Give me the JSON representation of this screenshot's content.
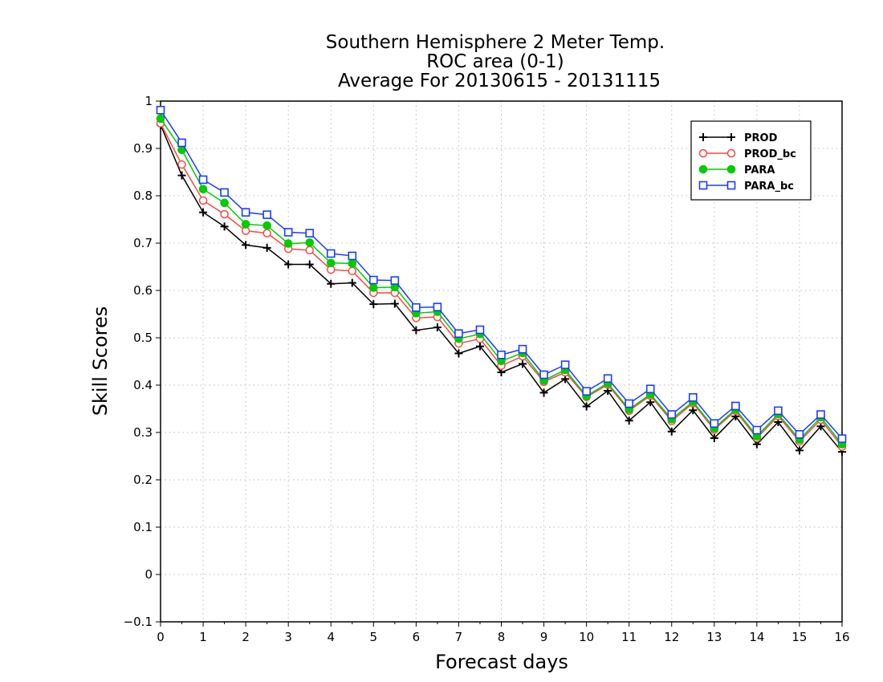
{
  "chart_data": {
    "type": "line",
    "title": [
      "Southern Hemisphere 2 Meter Temp.",
      "ROC area (0-1)",
      "Average For 20130615 - 20131115"
    ],
    "xlabel": "Forecast days",
    "ylabel": "Skill Scores",
    "xlim": [
      0,
      16
    ],
    "ylim": [
      -0.1,
      1
    ],
    "xticks": [
      "0",
      "1",
      "2",
      "3",
      "4",
      "5",
      "6",
      "7",
      "8",
      "9",
      "10",
      "11",
      "12",
      "13",
      "14",
      "15",
      "16"
    ],
    "yticks": [
      "−0.1",
      "0",
      "0.1",
      "0.2",
      "0.3",
      "0.4",
      "0.5",
      "0.6",
      "0.7",
      "0.8",
      "0.9",
      "1"
    ],
    "grid": true,
    "legend_position": "top-right",
    "x": [
      0,
      0.5,
      1,
      1.5,
      2,
      2.5,
      3,
      3.5,
      4,
      4.5,
      5,
      5.5,
      6,
      6.5,
      7,
      7.5,
      8,
      8.5,
      9,
      9.5,
      10,
      10.5,
      11,
      11.5,
      12,
      12.5,
      13,
      13.5,
      14,
      14.5,
      15,
      15.5,
      16
    ],
    "series": [
      {
        "name": "PROD",
        "color": "#000000",
        "marker": "plus",
        "values": [
          0.95,
          0.843,
          0.765,
          0.735,
          0.696,
          0.69,
          0.655,
          0.655,
          0.614,
          0.616,
          0.571,
          0.572,
          0.516,
          0.522,
          0.467,
          0.482,
          0.427,
          0.445,
          0.384,
          0.413,
          0.355,
          0.388,
          0.325,
          0.364,
          0.302,
          0.347,
          0.288,
          0.334,
          0.275,
          0.322,
          0.262,
          0.313,
          0.259
        ]
      },
      {
        "name": "PROD_bc",
        "color": "#ff4444",
        "marker": "circle-open",
        "values": [
          0.953,
          0.866,
          0.79,
          0.761,
          0.726,
          0.721,
          0.688,
          0.685,
          0.644,
          0.641,
          0.595,
          0.595,
          0.542,
          0.544,
          0.488,
          0.498,
          0.441,
          0.461,
          0.407,
          0.427,
          0.375,
          0.401,
          0.346,
          0.378,
          0.324,
          0.362,
          0.306,
          0.346,
          0.288,
          0.335,
          0.281,
          0.327,
          0.27
        ]
      },
      {
        "name": "PARA",
        "color": "#00cc00",
        "marker": "circle-filled",
        "values": [
          0.963,
          0.897,
          0.814,
          0.785,
          0.74,
          0.737,
          0.699,
          0.701,
          0.658,
          0.657,
          0.606,
          0.607,
          0.552,
          0.555,
          0.498,
          0.508,
          0.451,
          0.468,
          0.41,
          0.432,
          0.377,
          0.404,
          0.349,
          0.381,
          0.328,
          0.365,
          0.309,
          0.349,
          0.292,
          0.339,
          0.285,
          0.332,
          0.275
        ]
      },
      {
        "name": "PARA_bc",
        "color": "#1a3cff",
        "marker": "square-open",
        "values": [
          0.981,
          0.912,
          0.834,
          0.807,
          0.765,
          0.76,
          0.723,
          0.721,
          0.678,
          0.673,
          0.622,
          0.621,
          0.564,
          0.565,
          0.509,
          0.517,
          0.464,
          0.476,
          0.422,
          0.443,
          0.387,
          0.414,
          0.361,
          0.392,
          0.338,
          0.374,
          0.319,
          0.356,
          0.305,
          0.346,
          0.296,
          0.338,
          0.287
        ]
      }
    ]
  }
}
